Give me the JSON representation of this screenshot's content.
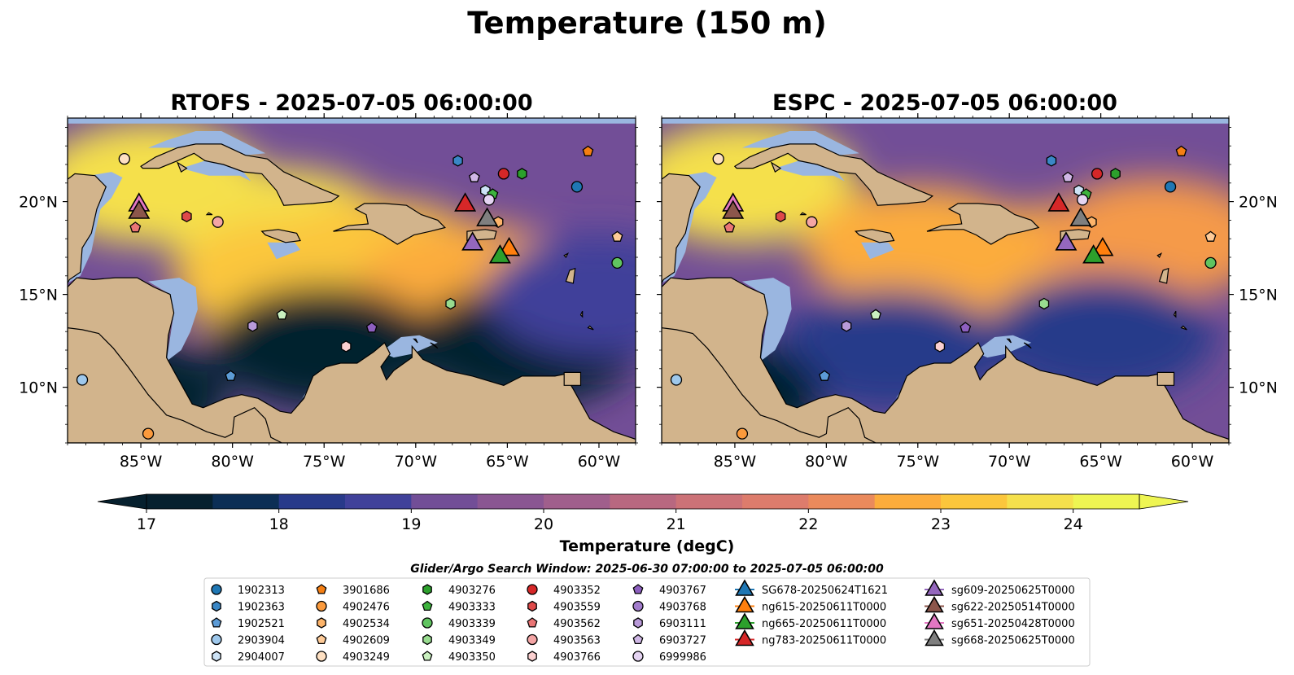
{
  "figure": {
    "title": "Temperature (150 m)",
    "window_text": "Glider/Argo Search Window: 2025-06-30 07:00:00 to 2025-07-05 06:00:00"
  },
  "colors": {
    "land": "#d2b48c",
    "ocean_shelf": "#9ab6e0",
    "cmap": [
      "#06202e",
      "#0c2e55",
      "#283a8a",
      "#40419a",
      "#5a4799",
      "#724e97",
      "#8a5692",
      "#a05f8c",
      "#b86880",
      "#cc7277",
      "#dd7c6c",
      "#ea8a5c",
      "#f59a49",
      "#fcac3c",
      "#fbc63c",
      "#f5e04c",
      "#eef552"
    ]
  },
  "chart_data": [
    {
      "type": "heatmap",
      "title": "RTOFS - 2025-07-05 06:00:00",
      "model": "RTOFS",
      "xlim": [
        -89,
        -58
      ],
      "ylim": [
        7,
        24.5
      ],
      "x_ticks": [
        -85,
        -80,
        -75,
        -70,
        -65,
        -60
      ],
      "x_tick_labels": [
        "85°W",
        "80°W",
        "75°W",
        "70°W",
        "65°W",
        "60°W"
      ],
      "y_ticks": [
        10,
        15,
        20
      ],
      "y_tick_labels": [
        "10°N",
        "15°N",
        "20°N"
      ],
      "y_axis_side": "left",
      "field_regions": [
        {
          "lon": -84.5,
          "lat": 21.0,
          "temp": 24.0
        },
        {
          "lon": -77.5,
          "lat": 18.5,
          "temp": 23.7
        },
        {
          "lon": -77.0,
          "lat": 15.8,
          "temp": 23.6
        },
        {
          "lon": -72.0,
          "lat": 16.8,
          "temp": 23.2
        },
        {
          "lon": -67.0,
          "lat": 15.5,
          "temp": 23.0
        },
        {
          "lon": -75.0,
          "lat": 12.2,
          "temp": 17.3
        },
        {
          "lon": -64.0,
          "lat": 12.3,
          "temp": 17.0
        },
        {
          "lon": -60.0,
          "lat": 15.0,
          "temp": 18.5
        },
        {
          "lon": -86.5,
          "lat": 9.5,
          "temp": 17.0
        }
      ]
    },
    {
      "type": "heatmap",
      "title": "ESPC - 2025-07-05 06:00:00",
      "model": "ESPC",
      "xlim": [
        -89,
        -58
      ],
      "ylim": [
        7,
        24.5
      ],
      "x_ticks": [
        -85,
        -80,
        -75,
        -70,
        -65,
        -60
      ],
      "x_tick_labels": [
        "85°W",
        "80°W",
        "75°W",
        "70°W",
        "65°W",
        "60°W"
      ],
      "y_ticks": [
        10,
        15,
        20
      ],
      "y_tick_labels": [
        "10°N",
        "15°N",
        "20°N"
      ],
      "y_axis_side": "right",
      "field_regions": [
        {
          "lon": -84.5,
          "lat": 21.0,
          "temp": 24.0
        },
        {
          "lon": -75.0,
          "lat": 17.5,
          "temp": 23.0
        },
        {
          "lon": -68.0,
          "lat": 16.5,
          "temp": 23.0
        },
        {
          "lon": -62.0,
          "lat": 18.0,
          "temp": 22.4
        },
        {
          "lon": -76.5,
          "lat": 12.0,
          "temp": 18.0
        },
        {
          "lon": -65.0,
          "lat": 12.8,
          "temp": 18.0
        },
        {
          "lon": -86.5,
          "lat": 9.5,
          "temp": 17.0
        }
      ]
    },
    {
      "type": "colorbar",
      "label": "Temperature (degC)",
      "range": [
        17,
        24.5
      ],
      "ticks": [
        17,
        18,
        19,
        20,
        21,
        22,
        23,
        24
      ],
      "tick_labels": [
        "17",
        "18",
        "19",
        "20",
        "21",
        "22",
        "23",
        "24"
      ],
      "extend": "both"
    }
  ],
  "observations": [
    {
      "id": "1902363",
      "lon": -67.7,
      "lat": 22.2,
      "panels": [
        "RTOFS",
        "ESPC"
      ]
    },
    {
      "id": "3901686",
      "lon": -60.6,
      "lat": 22.7,
      "panels": [
        "RTOFS",
        "ESPC"
      ]
    },
    {
      "id": "4903276",
      "lon": -64.2,
      "lat": 21.5,
      "panels": [
        "RTOFS",
        "ESPC"
      ]
    },
    {
      "id": "4903352",
      "lon": -65.2,
      "lat": 21.5,
      "panels": [
        "RTOFS",
        "ESPC"
      ]
    },
    {
      "id": "6903727",
      "lon": -66.8,
      "lat": 21.3,
      "panels": [
        "RTOFS",
        "ESPC"
      ]
    },
    {
      "id": "1902313",
      "lon": -61.2,
      "lat": 20.8,
      "panels": [
        "RTOFS",
        "ESPC"
      ]
    },
    {
      "id": "2904007",
      "lon": -66.2,
      "lat": 20.6,
      "panels": [
        "RTOFS",
        "ESPC"
      ]
    },
    {
      "id": "4903333",
      "lon": -65.8,
      "lat": 20.4,
      "panels": [
        "RTOFS",
        "ESPC"
      ]
    },
    {
      "id": "6999986",
      "lon": -66.0,
      "lat": 20.1,
      "panels": [
        "RTOFS",
        "ESPC"
      ]
    },
    {
      "id": "4902534",
      "lon": -65.5,
      "lat": 18.9,
      "panels": [
        "RTOFS",
        "ESPC"
      ]
    },
    {
      "id": "4902609",
      "lon": -59.0,
      "lat": 18.1,
      "panels": [
        "RTOFS",
        "ESPC"
      ]
    },
    {
      "id": "4903339",
      "lon": -59.0,
      "lat": 16.7,
      "panels": [
        "RTOFS",
        "ESPC"
      ]
    },
    {
      "id": "4903249",
      "lon": -85.9,
      "lat": 22.3,
      "panels": [
        "RTOFS",
        "ESPC"
      ]
    },
    {
      "id": "4903559",
      "lon": -82.5,
      "lat": 19.2,
      "panels": [
        "RTOFS",
        "ESPC"
      ]
    },
    {
      "id": "4903563",
      "lon": -80.8,
      "lat": 18.9,
      "panels": [
        "RTOFS",
        "ESPC"
      ]
    },
    {
      "id": "4903562",
      "lon": -85.3,
      "lat": 18.6,
      "panels": [
        "RTOFS",
        "ESPC"
      ]
    },
    {
      "id": "4903349",
      "lon": -68.1,
      "lat": 14.5,
      "panels": [
        "RTOFS",
        "ESPC"
      ]
    },
    {
      "id": "4903350",
      "lon": -77.3,
      "lat": 13.9,
      "panels": [
        "RTOFS",
        "ESPC"
      ]
    },
    {
      "id": "6903111",
      "lon": -78.9,
      "lat": 13.3,
      "panels": [
        "RTOFS",
        "ESPC"
      ]
    },
    {
      "id": "4903767",
      "lon": -72.4,
      "lat": 13.2,
      "panels": [
        "RTOFS",
        "ESPC"
      ]
    },
    {
      "id": "4903766",
      "lon": -73.8,
      "lat": 12.2,
      "panels": [
        "RTOFS",
        "ESPC"
      ]
    },
    {
      "id": "1902521",
      "lon": -80.1,
      "lat": 10.6,
      "panels": [
        "RTOFS",
        "ESPC"
      ]
    },
    {
      "id": "2903904",
      "lon": -88.2,
      "lat": 10.4,
      "panels": [
        "RTOFS",
        "ESPC"
      ]
    },
    {
      "id": "4902476",
      "lon": -84.6,
      "lat": 7.5,
      "panels": [
        "RTOFS",
        "ESPC"
      ]
    }
  ],
  "gliders": [
    {
      "id": "sg651-20250428T0000",
      "lon": -85.1,
      "lat": 19.9,
      "panels": [
        "RTOFS",
        "ESPC"
      ]
    },
    {
      "id": "sg622-20250514T0000",
      "lon": -85.1,
      "lat": 19.5,
      "panels": [
        "RTOFS",
        "ESPC"
      ]
    },
    {
      "id": "ng783-20250611T0000",
      "lon": -67.3,
      "lat": 19.9,
      "panels": [
        "RTOFS",
        "ESPC"
      ]
    },
    {
      "id": "sg668-20250625T0000",
      "lon": -66.1,
      "lat": 19.1,
      "panels": [
        "RTOFS",
        "ESPC"
      ]
    },
    {
      "id": "ng615-20250611T0000",
      "lon": -64.9,
      "lat": 17.5,
      "panels": [
        "RTOFS",
        "ESPC"
      ]
    },
    {
      "id": "sg609-20250625T0000",
      "lon": -66.9,
      "lat": 17.8,
      "panels": [
        "RTOFS",
        "ESPC"
      ]
    },
    {
      "id": "ng665-20250611T0000",
      "lon": -65.4,
      "lat": 17.1,
      "panels": [
        "RTOFS",
        "ESPC"
      ]
    }
  ],
  "legend": {
    "columns": [
      [
        {
          "label": "1902313",
          "marker": "circle",
          "color": "#1f77b4"
        },
        {
          "label": "1902363",
          "marker": "hexagon",
          "color": "#3a87c6"
        },
        {
          "label": "1902521",
          "marker": "pentagon",
          "color": "#5c9bd6"
        },
        {
          "label": "2903904",
          "marker": "circle",
          "color": "#9ec8ec"
        },
        {
          "label": "2904007",
          "marker": "hexagon",
          "color": "#cde3f6"
        }
      ],
      [
        {
          "label": "3901686",
          "marker": "pentagon",
          "color": "#f57f13"
        },
        {
          "label": "4902476",
          "marker": "circle",
          "color": "#fb9a3c"
        },
        {
          "label": "4902534",
          "marker": "hexagon",
          "color": "#fdb46a"
        },
        {
          "label": "4902609",
          "marker": "pentagon",
          "color": "#fecb98"
        },
        {
          "label": "4903249",
          "marker": "circle",
          "color": "#fee0c2"
        }
      ],
      [
        {
          "label": "4903276",
          "marker": "hexagon",
          "color": "#2ca02c"
        },
        {
          "label": "4903333",
          "marker": "pentagon",
          "color": "#3db33d"
        },
        {
          "label": "4903339",
          "marker": "circle",
          "color": "#60c460"
        },
        {
          "label": "4903349",
          "marker": "hexagon",
          "color": "#98dc8f"
        },
        {
          "label": "4903350",
          "marker": "pentagon",
          "color": "#c9f0bf"
        }
      ],
      [
        {
          "label": "4903352",
          "marker": "circle",
          "color": "#d62728"
        },
        {
          "label": "4903559",
          "marker": "hexagon",
          "color": "#df4a4a"
        },
        {
          "label": "4903562",
          "marker": "pentagon",
          "color": "#ea7575"
        },
        {
          "label": "4903563",
          "marker": "circle",
          "color": "#f4a5a5"
        },
        {
          "label": "4903766",
          "marker": "hexagon",
          "color": "#fbd0d0"
        }
      ],
      [
        {
          "label": "4903767",
          "marker": "pentagon",
          "color": "#8d5fbf"
        },
        {
          "label": "4903768",
          "marker": "circle",
          "color": "#a27ccc"
        },
        {
          "label": "6903111",
          "marker": "hexagon",
          "color": "#b99ad9"
        },
        {
          "label": "6903727",
          "marker": "pentagon",
          "color": "#d0b8e6"
        },
        {
          "label": "6999986",
          "marker": "circle",
          "color": "#e5d4f2"
        }
      ],
      [
        {
          "label": "SG678-20250624T1621",
          "marker": "triangle",
          "color": "#1f77b4"
        },
        {
          "label": "ng615-20250611T0000",
          "marker": "triangle",
          "color": "#ff7f0e"
        },
        {
          "label": "ng665-20250611T0000",
          "marker": "triangle",
          "color": "#2ca02c"
        },
        {
          "label": "ng783-20250611T0000",
          "marker": "triangle",
          "color": "#d62728"
        }
      ],
      [
        {
          "label": "sg609-20250625T0000",
          "marker": "triangle",
          "color": "#9467bd"
        },
        {
          "label": "sg622-20250514T0000",
          "marker": "triangle",
          "color": "#8c564b"
        },
        {
          "label": "sg651-20250428T0000",
          "marker": "triangle",
          "color": "#e377c2"
        },
        {
          "label": "sg668-20250625T0000",
          "marker": "triangle",
          "color": "#7f7f7f"
        }
      ]
    ]
  }
}
